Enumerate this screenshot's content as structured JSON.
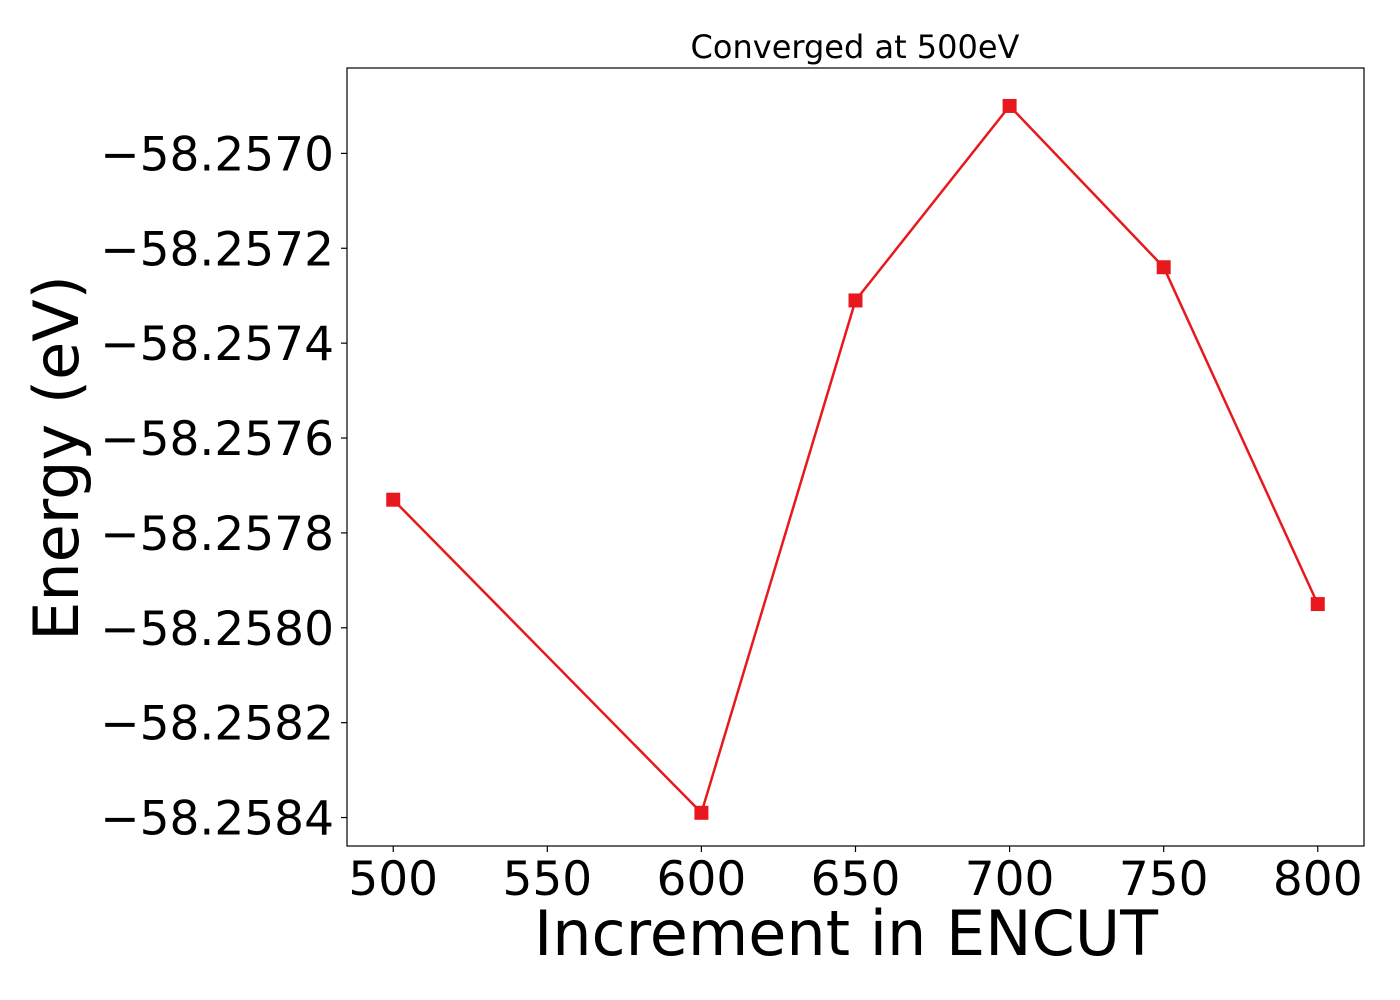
{
  "chart_data": {
    "type": "line",
    "title": "Converged at 500eV",
    "xlabel": "Increment in ENCUT",
    "ylabel": "Energy (eV)",
    "x": [
      500,
      600,
      650,
      700,
      750,
      800
    ],
    "series": [
      {
        "values": [
          -58.25773,
          -58.25839,
          -58.25731,
          -58.2569,
          -58.25724,
          -58.25795
        ],
        "color": "#e8191e",
        "marker": "square"
      }
    ],
    "x_ticks": [
      "500",
      "550",
      "600",
      "650",
      "700",
      "750",
      "800"
    ],
    "x_tick_values": [
      500,
      550,
      600,
      650,
      700,
      750,
      800
    ],
    "y_ticks": [
      "−58.2570",
      "−58.2572",
      "−58.2574",
      "−58.2576",
      "−58.2578",
      "−58.2580",
      "−58.2582",
      "−58.2584"
    ],
    "y_tick_values": [
      -58.257,
      -58.2572,
      -58.2574,
      -58.2576,
      -58.2578,
      -58.258,
      -58.2582,
      -58.2584
    ],
    "xlim": [
      485,
      815
    ],
    "ylim": [
      -58.25846,
      -58.25682
    ],
    "grid": false,
    "legend": "none"
  }
}
